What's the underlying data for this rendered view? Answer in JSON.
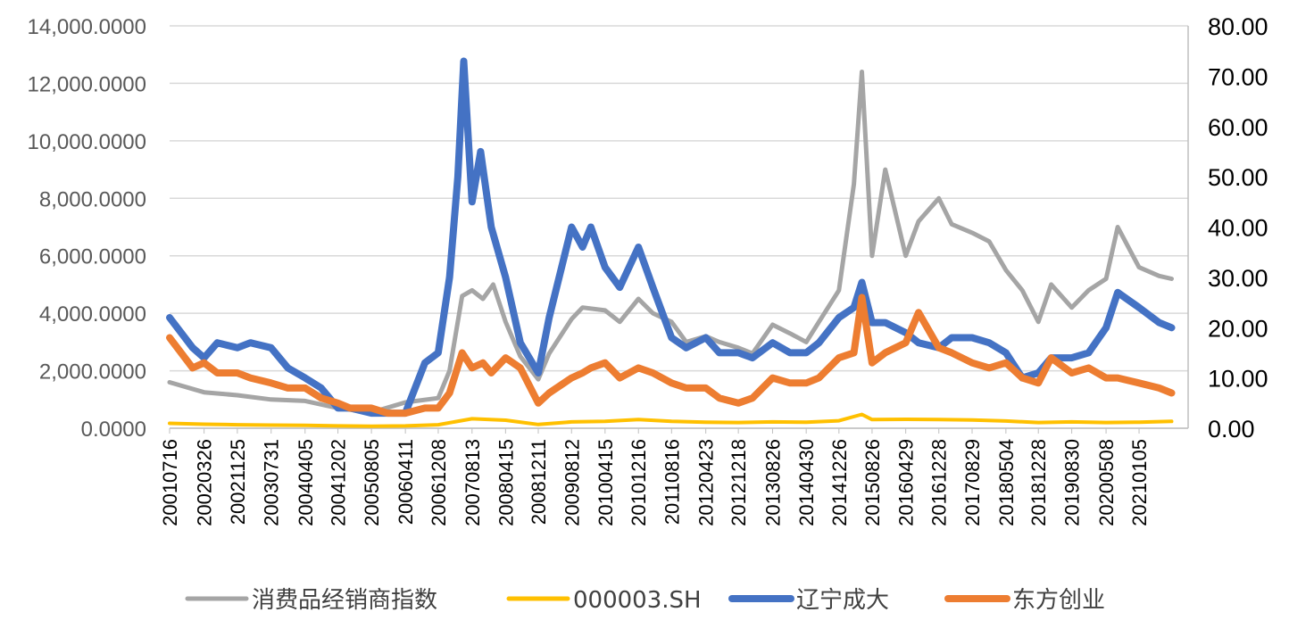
{
  "chart_data": {
    "type": "line",
    "x_ticks": [
      "20010716",
      "20020326",
      "20021125",
      "20030731",
      "20040405",
      "20041202",
      "20050805",
      "20060411",
      "20061208",
      "20070813",
      "20080415",
      "20081211",
      "20090812",
      "20100415",
      "20101216",
      "20110816",
      "20120423",
      "20121218",
      "20130826",
      "20140430",
      "20141226",
      "20150826",
      "20160429",
      "20161228",
      "20170829",
      "20180504",
      "20181228",
      "20190830",
      "20200508",
      "20210105"
    ],
    "y_left": {
      "ticks": [
        "0.0000",
        "2,000.0000",
        "4,000.0000",
        "6,000.0000",
        "8,000.0000",
        "10,000.0000",
        "12,000.0000",
        "14,000.0000"
      ],
      "range": [
        0,
        14000
      ]
    },
    "y_right": {
      "ticks": [
        "0.00",
        "10.00",
        "20.00",
        "30.00",
        "40.00",
        "50.00",
        "60.00",
        "70.00",
        "80.00"
      ],
      "range": [
        0,
        80
      ]
    },
    "grid": true,
    "legend_position": "bottom",
    "series": [
      {
        "name": "消费品经销商指数",
        "axis": "left",
        "color": "#a5a5a5",
        "x": [
          "20010716",
          "20020326",
          "20021125",
          "20030731",
          "20040405",
          "20041202",
          "20050805",
          "20060411",
          "20061208",
          "20070301",
          "20070601",
          "20070813",
          "20071101",
          "20080115",
          "20080415",
          "20080801",
          "20081211",
          "20090301",
          "20090812",
          "20091101",
          "20100415",
          "20100801",
          "20101216",
          "20110401",
          "20110816",
          "20111201",
          "20120423",
          "20120801",
          "20121218",
          "20130401",
          "20130826",
          "20140101",
          "20140430",
          "20140801",
          "20141226",
          "20150415",
          "20150612",
          "20150826",
          "20151201",
          "20160429",
          "20160801",
          "20161228",
          "20170401",
          "20170829",
          "20180101",
          "20180504",
          "20180901",
          "20181228",
          "20190401",
          "20190830",
          "20200101",
          "20200508",
          "20200801",
          "20210105",
          "20210601",
          "20210901"
        ],
        "values": [
          1600,
          1250,
          1150,
          1000,
          950,
          700,
          550,
          900,
          1050,
          2000,
          4600,
          4800,
          4500,
          5000,
          3700,
          2500,
          1700,
          2600,
          3800,
          4200,
          4100,
          3700,
          4500,
          4000,
          3700,
          3000,
          3200,
          3000,
          2800,
          2600,
          3600,
          3300,
          3000,
          3700,
          4800,
          8500,
          12400,
          6000,
          9000,
          6000,
          7200,
          8000,
          7100,
          6800,
          6500,
          5500,
          4800,
          3700,
          5000,
          4200,
          4800,
          5200,
          7000,
          5600,
          5300,
          5200
        ]
      },
      {
        "name": "000003.SH",
        "axis": "left",
        "color": "#ffc000",
        "x": [
          "20010716",
          "20020326",
          "20021125",
          "20030731",
          "20040405",
          "20041202",
          "20050805",
          "20060411",
          "20061208",
          "20070813",
          "20080415",
          "20081211",
          "20090812",
          "20100415",
          "20101216",
          "20110816",
          "20120423",
          "20121218",
          "20130826",
          "20140430",
          "20141226",
          "20150612",
          "20150826",
          "20160429",
          "20161228",
          "20170829",
          "20180504",
          "20181228",
          "20190830",
          "20200508",
          "20210105",
          "20210901"
        ],
        "values": [
          170,
          140,
          120,
          110,
          100,
          80,
          70,
          80,
          120,
          330,
          280,
          130,
          220,
          240,
          300,
          240,
          210,
          200,
          220,
          210,
          260,
          480,
          300,
          310,
          300,
          290,
          250,
          200,
          220,
          200,
          210,
          240
        ]
      },
      {
        "name": "辽宁成大",
        "axis": "right",
        "color": "#4472c4",
        "x": [
          "20010716",
          "20020101",
          "20020326",
          "20020701",
          "20021125",
          "20030301",
          "20030731",
          "20031201",
          "20040405",
          "20040801",
          "20041202",
          "20050301",
          "20050805",
          "20051201",
          "20060411",
          "20060901",
          "20061208",
          "20070301",
          "20070501",
          "20070613",
          "20070813",
          "20071015",
          "20080101",
          "20080415",
          "20080801",
          "20081211",
          "20090301",
          "20090812",
          "20091101",
          "20100101",
          "20100415",
          "20100801",
          "20101216",
          "20110401",
          "20110816",
          "20111201",
          "20120423",
          "20120801",
          "20121218",
          "20130401",
          "20130826",
          "20140101",
          "20140430",
          "20140801",
          "20141226",
          "20150415",
          "20150612",
          "20150826",
          "20151201",
          "20160429",
          "20160801",
          "20161228",
          "20170401",
          "20170829",
          "20180101",
          "20180504",
          "20180901",
          "20181228",
          "20190401",
          "20190830",
          "20200101",
          "20200508",
          "20200801",
          "20210105",
          "20210601",
          "20210901"
        ],
        "values": [
          22,
          16,
          14,
          17,
          16,
          17,
          16,
          12,
          10,
          8,
          4,
          4,
          3,
          3,
          3,
          13,
          15,
          30,
          50,
          73,
          45,
          55,
          40,
          30,
          17,
          11,
          22,
          40,
          36,
          40,
          32,
          28,
          36,
          28,
          18,
          16,
          18,
          15,
          15,
          14,
          17,
          15,
          15,
          17,
          22,
          24,
          29,
          21,
          21,
          19,
          17,
          16,
          18,
          18,
          17,
          15,
          10,
          11,
          14,
          14,
          15,
          20,
          27,
          24,
          21,
          20
        ]
      },
      {
        "name": "东方创业",
        "axis": "right",
        "color": "#ed7d31",
        "x": [
          "20010716",
          "20020101",
          "20020326",
          "20020701",
          "20021125",
          "20030301",
          "20030731",
          "20031201",
          "20040405",
          "20040801",
          "20041202",
          "20050301",
          "20050805",
          "20051201",
          "20060411",
          "20060901",
          "20061208",
          "20070301",
          "20070601",
          "20070813",
          "20071101",
          "20080101",
          "20080415",
          "20080801",
          "20081211",
          "20090301",
          "20090812",
          "20091101",
          "20100101",
          "20100415",
          "20100801",
          "20101216",
          "20110401",
          "20110816",
          "20111201",
          "20120423",
          "20120801",
          "20121218",
          "20130401",
          "20130826",
          "20140101",
          "20140430",
          "20140801",
          "20141226",
          "20150415",
          "20150612",
          "20150826",
          "20151201",
          "20160429",
          "20160801",
          "20161228",
          "20170401",
          "20170829",
          "20180101",
          "20180504",
          "20180901",
          "20181228",
          "20190401",
          "20190830",
          "20200101",
          "20200508",
          "20200801",
          "20210105",
          "20210601",
          "20210901"
        ],
        "values": [
          18,
          12,
          13,
          11,
          11,
          10,
          9,
          8,
          8,
          6,
          5,
          4,
          4,
          3,
          3,
          4,
          4,
          7,
          15,
          12,
          13,
          11,
          14,
          12,
          5,
          7,
          10,
          11,
          12,
          13,
          10,
          12,
          11,
          9,
          8,
          8,
          6,
          5,
          6,
          10,
          9,
          9,
          10,
          14,
          15,
          26,
          13,
          15,
          17,
          23,
          16,
          15,
          13,
          12,
          13,
          10,
          9,
          14,
          11,
          12,
          10,
          10,
          9,
          8,
          7
        ]
      }
    ]
  }
}
